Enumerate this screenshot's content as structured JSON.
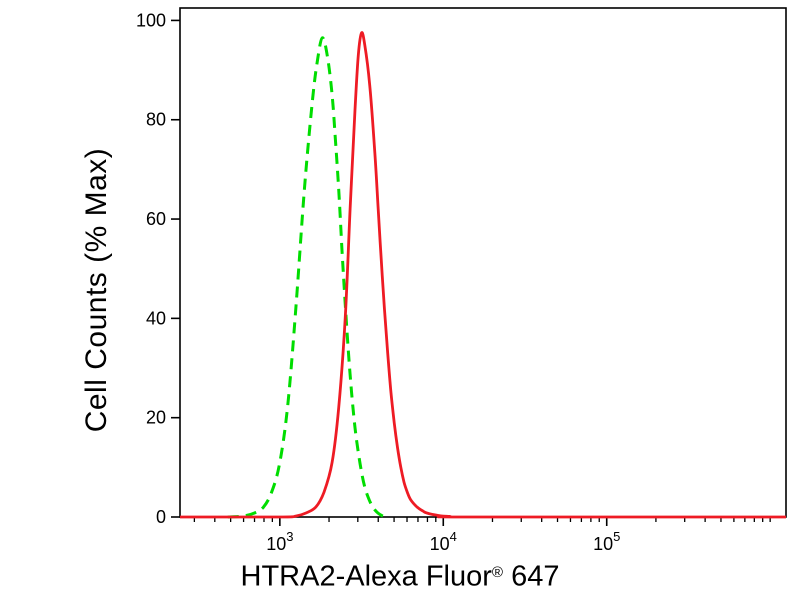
{
  "page": {
    "background": "#ffffff"
  },
  "chart_data": {
    "type": "line",
    "subtype": "flow-cytometry-histogram",
    "title": "",
    "ylabel": "Cell Counts (% Max)",
    "xlabel": {
      "text": "HTRA2-Alexa Fluor",
      "registered": "®",
      "suffix": " 647"
    },
    "x_scale": "log10",
    "x_range": [
      245,
      1250000
    ],
    "y_range": [
      0,
      102.5
    ],
    "grid": false,
    "legend": "none",
    "axis_color": "#000000",
    "x_ticks": [
      {
        "base": "10",
        "exponent": "3",
        "value": 1000
      },
      {
        "base": "10",
        "exponent": "4",
        "value": 10000
      },
      {
        "base": "10",
        "exponent": "5",
        "value": 100000
      }
    ],
    "y_ticks": [
      0,
      20,
      40,
      60,
      80,
      100
    ],
    "series": [
      {
        "id": "green-dashed-curve",
        "color": "#00dd00",
        "dash": [
          11,
          7
        ],
        "width": 3,
        "points": [
          [
            480,
            0
          ],
          [
            600,
            0.2
          ],
          [
            700,
            0.8
          ],
          [
            794,
            2
          ],
          [
            891,
            5
          ],
          [
            1000,
            11
          ],
          [
            1122,
            23
          ],
          [
            1259,
            43
          ],
          [
            1413,
            66
          ],
          [
            1585,
            84
          ],
          [
            1700,
            92
          ],
          [
            1820,
            96.5
          ],
          [
            1950,
            93
          ],
          [
            2089,
            85
          ],
          [
            2188,
            76
          ],
          [
            2291,
            66
          ],
          [
            2399,
            54
          ],
          [
            2512,
            43
          ],
          [
            2630,
            33
          ],
          [
            2750,
            25
          ],
          [
            2884,
            18
          ],
          [
            3020,
            13
          ],
          [
            3162,
            9
          ],
          [
            3311,
            6
          ],
          [
            3467,
            4
          ],
          [
            3631,
            2.5
          ],
          [
            3800,
            1.5
          ],
          [
            3981,
            0.8
          ],
          [
            4200,
            0.3
          ],
          [
            4500,
            0
          ]
        ]
      },
      {
        "id": "red-solid-curve",
        "color": "#ee1b24",
        "dash": null,
        "width": 2.8,
        "points": [
          [
            245,
            0
          ],
          [
            1000,
            0
          ],
          [
            1259,
            0.2
          ],
          [
            1445,
            0.8
          ],
          [
            1660,
            2
          ],
          [
            1862,
            5
          ],
          [
            2089,
            11
          ],
          [
            2291,
            22
          ],
          [
            2512,
            40
          ],
          [
            2692,
            62
          ],
          [
            2884,
            82
          ],
          [
            3020,
            93
          ],
          [
            3162,
            97.5
          ],
          [
            3311,
            95
          ],
          [
            3548,
            87
          ],
          [
            3802,
            74
          ],
          [
            4000,
            62
          ],
          [
            4169,
            52
          ],
          [
            4365,
            42
          ],
          [
            4571,
            33
          ],
          [
            4786,
            25
          ],
          [
            5012,
            19
          ],
          [
            5248,
            14
          ],
          [
            5495,
            10
          ],
          [
            5754,
            7
          ],
          [
            6026,
            5
          ],
          [
            6310,
            3.5
          ],
          [
            6918,
            2
          ],
          [
            7500,
            1.2
          ],
          [
            7943,
            0.8
          ],
          [
            9333,
            0.3
          ],
          [
            11000,
            0.1
          ],
          [
            14000,
            0
          ],
          [
            1250000,
            0
          ]
        ]
      }
    ]
  }
}
